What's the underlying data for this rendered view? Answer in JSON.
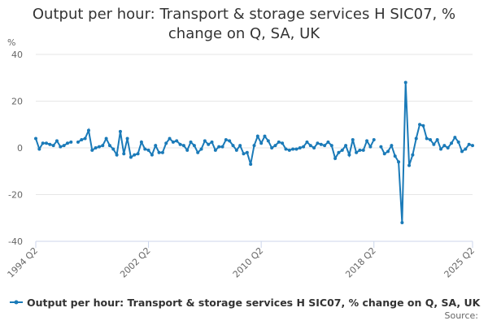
{
  "chart_data": {
    "type": "line",
    "title": "Output per hour: Transport & storage services H SIC07, % change on Q, SA, UK",
    "y_label": "%",
    "source": "Source:",
    "categories": [
      "1994 Q2",
      null,
      null,
      null,
      null,
      null,
      null,
      null,
      null,
      null,
      null,
      null,
      null,
      null,
      null,
      null,
      null,
      null,
      null,
      null,
      null,
      null,
      null,
      null,
      null,
      null,
      null,
      null,
      null,
      null,
      null,
      null,
      "2002 Q2",
      null,
      null,
      null,
      null,
      null,
      null,
      null,
      null,
      null,
      null,
      null,
      null,
      null,
      null,
      null,
      null,
      null,
      null,
      null,
      null,
      null,
      null,
      null,
      null,
      null,
      null,
      null,
      null,
      null,
      null,
      null,
      "2010 Q2",
      null,
      null,
      null,
      null,
      null,
      null,
      null,
      null,
      null,
      null,
      null,
      null,
      null,
      null,
      null,
      null,
      null,
      null,
      null,
      null,
      null,
      null,
      null,
      null,
      null,
      null,
      null,
      null,
      null,
      null,
      null,
      "2018 Q2",
      null,
      null,
      null,
      null,
      null,
      null,
      null,
      null,
      null,
      null,
      null,
      null,
      null,
      null,
      null,
      null,
      null,
      null,
      null,
      null,
      null,
      null,
      null,
      null,
      null,
      null,
      null,
      "2025 Q2"
    ],
    "series": [
      {
        "name": "Output per hour: Transport & storage services H SIC07, % change on Q, SA, UK",
        "color": "#1a7ab8",
        "values": [
          4,
          -0.5,
          2,
          2,
          1.5,
          1,
          3,
          0.5,
          1,
          2,
          2.5,
          null,
          2.5,
          3.5,
          4,
          7.5,
          -1,
          0,
          0.5,
          1,
          4,
          1,
          -0.5,
          -3,
          7,
          -2.5,
          4,
          -4,
          -3,
          -2.5,
          2.5,
          -0.5,
          -1,
          -3,
          1,
          -2,
          -2,
          2,
          4,
          2.5,
          3,
          1.5,
          1,
          -1,
          2.5,
          1,
          -2,
          -0.5,
          3,
          1.5,
          2.5,
          -1,
          0.5,
          0.5,
          3.5,
          3,
          1,
          -1,
          1,
          -2.5,
          -2,
          -7,
          1,
          5,
          2,
          5,
          3,
          0,
          1,
          2.5,
          2,
          -0.5,
          -1,
          -0.5,
          -0.5,
          0,
          0.5,
          2.5,
          1,
          0,
          2,
          1.5,
          1,
          2.5,
          1,
          -4.5,
          -2,
          -1,
          1,
          -3,
          3.5,
          -2,
          -1,
          -1,
          3,
          0.5,
          3.5,
          null,
          0.5,
          -2.5,
          -1.5,
          1,
          -3.5,
          -6,
          -32,
          28,
          -7.5,
          -3,
          4,
          10,
          9.5,
          4,
          3.5,
          1.5,
          3.5,
          -0.5,
          1,
          0,
          2,
          4.5,
          2.5,
          -1.5,
          -0.5,
          1.5,
          1
        ]
      }
    ],
    "ylim": [
      -40,
      40
    ],
    "yticks": [
      40,
      20,
      0,
      -20,
      -40
    ],
    "grid": true
  }
}
